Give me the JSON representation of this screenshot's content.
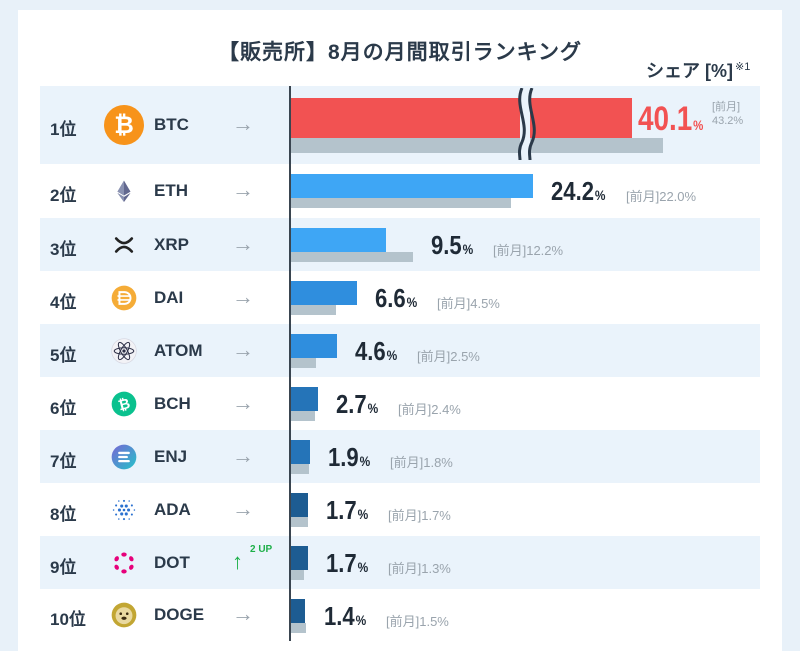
{
  "title": "【販売所】8月の月間取引ランキング",
  "share_label": "シェア [%]",
  "share_note": "※1",
  "prev_label": "[前月]",
  "pct_unit": "%",
  "colors": {
    "btc_bar": "#f25252",
    "bar_1": "#3ea6f5",
    "bar_2": "#2f8ede",
    "bar_3": "#2574b8",
    "bar_4": "#1d5c92",
    "prev_bar": "#b4c3cc"
  },
  "chart_data": {
    "type": "bar",
    "orientation": "horizontal",
    "title": "【販売所】8月の月間取引ランキング",
    "ylabel": "シェア [%]",
    "categories": [
      "BTC",
      "ETH",
      "XRP",
      "DAI",
      "ATOM",
      "BCH",
      "ENJ",
      "ADA",
      "DOT",
      "DOGE"
    ],
    "series": [
      {
        "name": "8月",
        "values": [
          40.1,
          24.2,
          9.5,
          6.6,
          4.6,
          2.7,
          1.9,
          1.7,
          1.7,
          1.4
        ]
      },
      {
        "name": "前月",
        "values": [
          43.2,
          22.0,
          12.2,
          4.5,
          2.5,
          2.4,
          1.8,
          1.7,
          1.3,
          1.5
        ]
      }
    ],
    "axis_break": "BTC bar truncated"
  },
  "rows": [
    {
      "rank": "1位",
      "coin": "BTC",
      "icon": "bitcoin-icon",
      "change": "same",
      "value": "40.1",
      "prev": "43.2"
    },
    {
      "rank": "2位",
      "coin": "ETH",
      "icon": "ethereum-icon",
      "change": "same",
      "value": "24.2",
      "prev": "22.0"
    },
    {
      "rank": "3位",
      "coin": "XRP",
      "icon": "xrp-icon",
      "change": "same",
      "value": "9.5",
      "prev": "12.2"
    },
    {
      "rank": "4位",
      "coin": "DAI",
      "icon": "dai-icon",
      "change": "same",
      "value": "6.6",
      "prev": "4.5"
    },
    {
      "rank": "5位",
      "coin": "ATOM",
      "icon": "cosmos-icon",
      "change": "same",
      "value": "4.6",
      "prev": "2.5"
    },
    {
      "rank": "6位",
      "coin": "BCH",
      "icon": "bitcoin-cash-icon",
      "change": "same",
      "value": "2.7",
      "prev": "2.4"
    },
    {
      "rank": "7位",
      "coin": "ENJ",
      "icon": "enjin-icon",
      "change": "same",
      "value": "1.9",
      "prev": "1.8"
    },
    {
      "rank": "8位",
      "coin": "ADA",
      "icon": "cardano-icon",
      "change": "same",
      "value": "1.7",
      "prev": "1.7"
    },
    {
      "rank": "9位",
      "coin": "DOT",
      "icon": "polkadot-icon",
      "change": "up",
      "up_text": "2 UP",
      "value": "1.7",
      "prev": "1.3"
    },
    {
      "rank": "10位",
      "coin": "DOGE",
      "icon": "dogecoin-icon",
      "change": "same",
      "value": "1.4",
      "prev": "1.5"
    }
  ]
}
